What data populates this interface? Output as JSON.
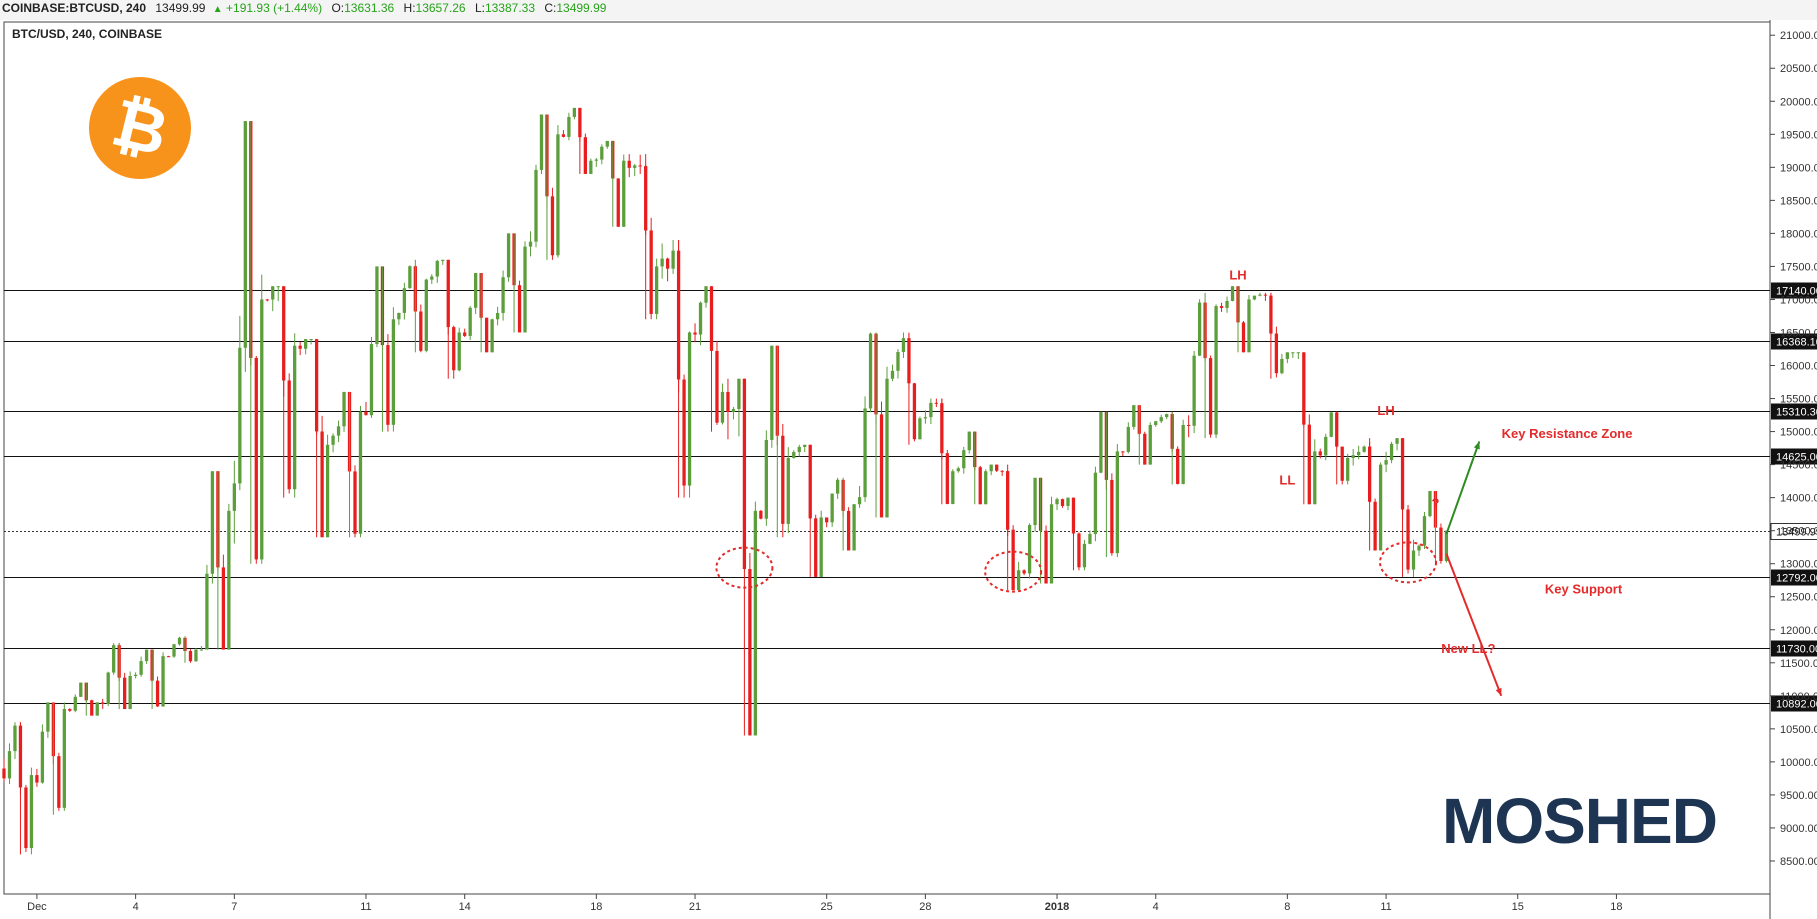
{
  "header": {
    "symbol": "COINBASE:BTCUSD, 240",
    "last": "13499.99",
    "change": "+191.93 (+1.44%)",
    "o_label": "O:",
    "o_value": "13631.36",
    "h_label": "H:",
    "h_value": "13657.26",
    "l_label": "L:",
    "l_value": "13387.33",
    "c_label": "C:",
    "c_value": "13499.99",
    "up_arrow_icon": "triangle-up-icon"
  },
  "colors": {
    "up": "#5b9e3b",
    "down": "#e81e1e",
    "annotation": "#e32b2b",
    "logo_orange": "#f7931a",
    "brand": "#1d3553"
  },
  "brand": {
    "name": "MOSHED",
    "icon": "bitcoin-logo-icon"
  },
  "chart_data": {
    "type": "candlestick",
    "title": "BTC/USD, 240, COINBASE",
    "ylim": [
      8000,
      21200
    ],
    "yticks": [
      8500,
      9000,
      9500,
      10000,
      10500,
      11000,
      11500,
      12000,
      12500,
      13000,
      13500,
      14000,
      14500,
      15000,
      15500,
      16000,
      16500,
      17000,
      17500,
      18000,
      18500,
      19000,
      19500,
      20000,
      20500,
      21000
    ],
    "ytick_labels": [
      "8500.00",
      "9000.00",
      "9500.00",
      "10000.00",
      "10500.00",
      "11000.00",
      "11500.00",
      "12000.00",
      "12500.00",
      "13000.00",
      "13500.00",
      "14000.00",
      "14500.00",
      "15000.00",
      "15500.00",
      "16000.00",
      "16500.00",
      "17000.00",
      "17500.00",
      "18000.00",
      "18500.00",
      "19000.00",
      "19500.00",
      "20000.00",
      "20500.00",
      "21000.00"
    ],
    "xticks": [
      "Dec",
      "4",
      "7",
      "11",
      "14",
      "18",
      "21",
      "25",
      "28",
      "2018",
      "4",
      "8",
      "11",
      "15",
      "18"
    ],
    "xtick_dates": [
      "2017-12-01",
      "2017-12-04",
      "2017-12-07",
      "2017-12-11",
      "2017-12-14",
      "2017-12-18",
      "2017-12-21",
      "2017-12-25",
      "2017-12-28",
      "2018-01-01",
      "2018-01-04",
      "2018-01-08",
      "2018-01-11",
      "2018-01-15",
      "2018-01-18"
    ],
    "levels": [
      {
        "value": 17140,
        "label": "17140.00"
      },
      {
        "value": 16368.1,
        "label": "16368.10"
      },
      {
        "value": 15310.3,
        "label": "15310.30"
      },
      {
        "value": 14625,
        "label": "14625.00"
      },
      {
        "value": 12792,
        "label": "12792.00"
      },
      {
        "value": 11730,
        "label": "11730.00"
      },
      {
        "value": 10892,
        "label": "10892.00"
      }
    ],
    "last_price": {
      "value": 13499.99,
      "label": "13499.99"
    },
    "annotations": [
      {
        "text": "LH",
        "date": "2018-01-06T12:00",
        "price": 17300
      },
      {
        "text": "LH",
        "date": "2018-01-11T00:00",
        "price": 15250
      },
      {
        "text": "LL",
        "date": "2018-01-08T00:00",
        "price": 14200
      },
      {
        "text": "?",
        "date": "2018-01-12T12:00",
        "price": 13850
      },
      {
        "text": "Key Resistance Zone",
        "date": "2018-01-16T12:00",
        "price": 14900
      },
      {
        "text": "Key Support",
        "date": "2018-01-17T00:00",
        "price": 12550
      },
      {
        "text": "New LL?",
        "date": "2018-01-13T12:00",
        "price": 11650
      }
    ],
    "circles": [
      {
        "date": "2017-12-22T12:00",
        "price": 12940
      },
      {
        "date": "2017-12-30T16:00",
        "price": 12880
      },
      {
        "date": "2018-01-11T16:00",
        "price": 13020
      }
    ],
    "arrows": [
      {
        "from_date": "2018-01-12T20:00",
        "from_price": 13450,
        "to_date": "2018-01-13T20:00",
        "to_price": 14850,
        "direction": "up"
      },
      {
        "from_date": "2018-01-12T20:00",
        "from_price": 13150,
        "to_date": "2018-01-14T12:00",
        "to_price": 11000,
        "direction": "down"
      }
    ],
    "ohlc_daily": [
      {
        "date": "2017-11-30",
        "o": 9900,
        "h": 10600,
        "l": 8600,
        "c": 9800
      },
      {
        "date": "2017-12-01",
        "o": 9800,
        "h": 10900,
        "l": 9200,
        "c": 10800
      },
      {
        "date": "2017-12-02",
        "o": 10800,
        "h": 11200,
        "l": 10700,
        "c": 10900
      },
      {
        "date": "2017-12-03",
        "o": 10900,
        "h": 11800,
        "l": 10800,
        "c": 11300
      },
      {
        "date": "2017-12-04",
        "o": 11300,
        "h": 11700,
        "l": 10800,
        "c": 11600
      },
      {
        "date": "2017-12-05",
        "o": 11600,
        "h": 11900,
        "l": 11500,
        "c": 11700
      },
      {
        "date": "2017-12-06",
        "o": 11700,
        "h": 14400,
        "l": 11700,
        "c": 13800
      },
      {
        "date": "2017-12-07",
        "o": 13800,
        "h": 19700,
        "l": 13000,
        "c": 17000
      },
      {
        "date": "2017-12-08",
        "o": 17000,
        "h": 17200,
        "l": 14000,
        "c": 16300
      },
      {
        "date": "2017-12-09",
        "o": 16300,
        "h": 16400,
        "l": 13400,
        "c": 14800
      },
      {
        "date": "2017-12-10",
        "o": 14800,
        "h": 15600,
        "l": 13400,
        "c": 15300
      },
      {
        "date": "2017-12-11",
        "o": 15300,
        "h": 17500,
        "l": 15000,
        "c": 16700
      },
      {
        "date": "2017-12-12",
        "o": 16700,
        "h": 17600,
        "l": 16200,
        "c": 17300
      },
      {
        "date": "2017-12-13",
        "o": 17300,
        "h": 17600,
        "l": 15800,
        "c": 16500
      },
      {
        "date": "2017-12-14",
        "o": 16500,
        "h": 17400,
        "l": 16200,
        "c": 16700
      },
      {
        "date": "2017-12-15",
        "o": 16700,
        "h": 18000,
        "l": 16500,
        "c": 17800
      },
      {
        "date": "2017-12-16",
        "o": 17800,
        "h": 19800,
        "l": 17600,
        "c": 19500
      },
      {
        "date": "2017-12-17",
        "o": 19500,
        "h": 19900,
        "l": 18900,
        "c": 19100
      },
      {
        "date": "2017-12-18",
        "o": 19100,
        "h": 19400,
        "l": 18100,
        "c": 19100
      },
      {
        "date": "2017-12-19",
        "o": 19100,
        "h": 19200,
        "l": 16700,
        "c": 17500
      },
      {
        "date": "2017-12-20",
        "o": 17500,
        "h": 17900,
        "l": 14000,
        "c": 16500
      },
      {
        "date": "2017-12-21",
        "o": 16500,
        "h": 17200,
        "l": 15000,
        "c": 15600
      },
      {
        "date": "2017-12-22",
        "o": 15600,
        "h": 15800,
        "l": 10400,
        "c": 13800
      },
      {
        "date": "2017-12-23",
        "o": 13800,
        "h": 16300,
        "l": 13400,
        "c": 14600
      },
      {
        "date": "2017-12-24",
        "o": 14600,
        "h": 14800,
        "l": 12800,
        "c": 13700
      },
      {
        "date": "2017-12-25",
        "o": 13700,
        "h": 14300,
        "l": 13200,
        "c": 13900
      },
      {
        "date": "2017-12-26",
        "o": 13900,
        "h": 16500,
        "l": 13700,
        "c": 15800
      },
      {
        "date": "2017-12-27",
        "o": 15800,
        "h": 16500,
        "l": 14800,
        "c": 15200
      },
      {
        "date": "2017-12-28",
        "o": 15200,
        "h": 15500,
        "l": 13900,
        "c": 14400
      },
      {
        "date": "2017-12-29",
        "o": 14400,
        "h": 15000,
        "l": 13900,
        "c": 14400
      },
      {
        "date": "2017-12-30",
        "o": 14400,
        "h": 14500,
        "l": 12600,
        "c": 12900
      },
      {
        "date": "2017-12-31",
        "o": 12900,
        "h": 14300,
        "l": 12700,
        "c": 13900
      },
      {
        "date": "2018-01-01",
        "o": 13900,
        "h": 14000,
        "l": 12900,
        "c": 13300
      },
      {
        "date": "2018-01-02",
        "o": 13300,
        "h": 15300,
        "l": 13100,
        "c": 14700
      },
      {
        "date": "2018-01-03",
        "o": 14700,
        "h": 15400,
        "l": 14500,
        "c": 15100
      },
      {
        "date": "2018-01-04",
        "o": 15100,
        "h": 15300,
        "l": 14200,
        "c": 15100
      },
      {
        "date": "2018-01-05",
        "o": 15100,
        "h": 17100,
        "l": 14900,
        "c": 16900
      },
      {
        "date": "2018-01-06",
        "o": 16900,
        "h": 17200,
        "l": 16200,
        "c": 17000
      },
      {
        "date": "2018-01-07",
        "o": 17000,
        "h": 17100,
        "l": 15800,
        "c": 16100
      },
      {
        "date": "2018-01-08",
        "o": 16100,
        "h": 16200,
        "l": 13900,
        "c": 14700
      },
      {
        "date": "2018-01-09",
        "o": 14700,
        "h": 15300,
        "l": 14200,
        "c": 14600
      },
      {
        "date": "2018-01-10",
        "o": 14600,
        "h": 14900,
        "l": 13200,
        "c": 14500
      },
      {
        "date": "2018-01-11",
        "o": 14500,
        "h": 14900,
        "l": 12800,
        "c": 13200
      },
      {
        "date": "2018-01-12",
        "o": 13200,
        "h": 14100,
        "l": 13000,
        "c": 13500
      }
    ]
  }
}
